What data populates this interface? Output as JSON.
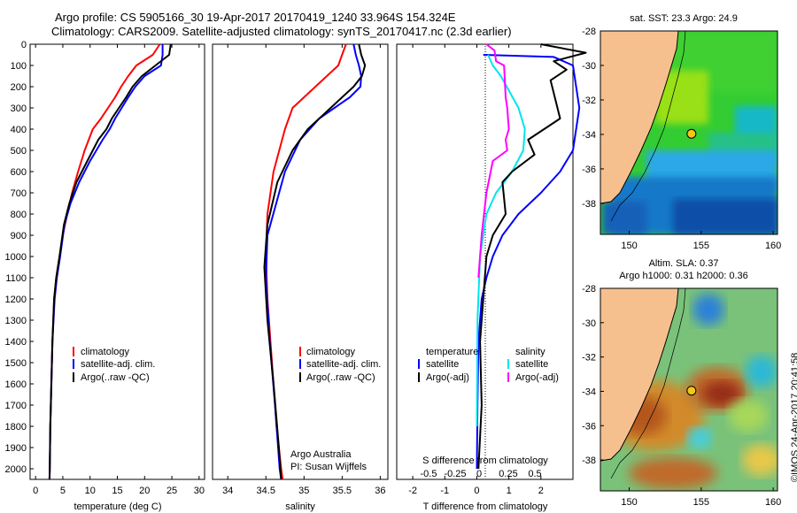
{
  "header": {
    "title_line1": "Argo profile: CS 5905166_30 19-Apr-2017 20170419_1240 33.964S 154.324E",
    "title_line2": "Climatology: CARS2009. Satellite-adjusted climatology: synTS_20170417.nc (2.3d earlier)"
  },
  "credit": "©IMOS 24-Apr-2017 20:41:58",
  "colors": {
    "climatology": "#ff0000",
    "satellite": "#0000ff",
    "argo": "#000000",
    "sat_salinity": "#00e5ee",
    "argo_salinity": "#ff00ff",
    "land": "#f6c08e"
  },
  "chart_data": [
    {
      "type": "line",
      "panel": "temperature",
      "xlabel": "temperature (deg C)",
      "ylabel": "",
      "xlim": [
        -1,
        31
      ],
      "ylim": [
        2050,
        0
      ],
      "xticks": [
        0,
        5,
        10,
        15,
        20,
        25,
        30
      ],
      "yticks": [
        0,
        100,
        200,
        300,
        400,
        500,
        600,
        700,
        800,
        900,
        1000,
        1100,
        1200,
        1300,
        1400,
        1500,
        1600,
        1700,
        1800,
        1900,
        2000
      ],
      "legend": [
        "climatology",
        "satellite-adj. clim.",
        "Argo(..raw -QC)"
      ],
      "series": [
        {
          "name": "climatology",
          "color": "#ff0000",
          "x": [
            22.8,
            21.5,
            18.5,
            17.0,
            15.7,
            14.6,
            13.3,
            12.0,
            10.5,
            9.0,
            7.8,
            6.7,
            5.8,
            5.0,
            4.4,
            3.8,
            3.4,
            3.1,
            2.9,
            2.7,
            2.6,
            2.55
          ],
          "y": [
            0,
            50,
            100,
            150,
            200,
            250,
            300,
            350,
            400,
            500,
            600,
            700,
            800,
            900,
            1000,
            1100,
            1200,
            1400,
            1600,
            1800,
            2000,
            2050
          ]
        },
        {
          "name": "satellite-adj. clim.",
          "color": "#0000ff",
          "x": [
            23.3,
            23.3,
            23.0,
            20.0,
            18.3,
            17.0,
            15.8,
            14.6,
            13.6,
            12.3,
            10.0,
            8.0,
            6.4,
            5.3,
            4.5,
            3.9,
            3.5,
            3.1,
            2.9,
            2.7,
            2.6,
            2.55
          ],
          "y": [
            0,
            50,
            100,
            150,
            200,
            250,
            300,
            350,
            400,
            450,
            550,
            650,
            750,
            850,
            1000,
            1100,
            1200,
            1400,
            1600,
            1800,
            2000,
            2050
          ]
        },
        {
          "name": "Argo(..raw -QC)",
          "color": "#000000",
          "x": [
            24.8,
            24.5,
            22.0,
            19.5,
            17.8,
            16.6,
            15.3,
            14.0,
            13.0,
            11.5,
            9.5,
            7.5,
            6.2,
            5.2,
            4.4,
            3.8,
            3.4,
            3.1,
            2.9,
            2.7,
            2.6,
            2.55
          ],
          "y": [
            0,
            50,
            100,
            150,
            200,
            250,
            300,
            350,
            400,
            450,
            550,
            650,
            750,
            850,
            1000,
            1100,
            1200,
            1400,
            1600,
            1800,
            2000,
            2050
          ]
        }
      ]
    },
    {
      "type": "line",
      "panel": "salinity",
      "xlabel": "salinity",
      "ylabel": "",
      "xlim": [
        33.8,
        36.1
      ],
      "ylim": [
        2050,
        0
      ],
      "xticks": [
        34,
        34.5,
        35,
        35.5,
        36
      ],
      "legend": [
        "climatology",
        "satellite-adj. clim.",
        "Argo(..raw -QC)"
      ],
      "annotation": [
        "Argo Australia",
        "PI: Susan Wijffels"
      ],
      "series": [
        {
          "name": "climatology",
          "color": "#ff0000",
          "x": [
            35.55,
            35.5,
            35.45,
            35.3,
            35.15,
            35.0,
            34.85,
            34.75,
            34.6,
            34.52,
            34.5,
            34.52,
            34.58,
            34.64,
            34.7,
            34.72
          ],
          "y": [
            0,
            50,
            100,
            150,
            200,
            250,
            300,
            400,
            600,
            800,
            1000,
            1200,
            1500,
            1800,
            2000,
            2050
          ]
        },
        {
          "name": "satellite-adj. clim.",
          "color": "#0000ff",
          "x": [
            35.65,
            35.68,
            35.72,
            35.75,
            35.74,
            35.6,
            35.4,
            35.2,
            34.95,
            34.75,
            34.52,
            34.5,
            34.55,
            34.62,
            34.68,
            34.7
          ],
          "y": [
            0,
            50,
            100,
            150,
            200,
            250,
            300,
            350,
            450,
            600,
            900,
            1100,
            1400,
            1700,
            2000,
            2050
          ]
        },
        {
          "name": "Argo(..raw -QC)",
          "color": "#000000",
          "x": [
            35.72,
            35.75,
            35.8,
            35.76,
            35.65,
            35.5,
            35.35,
            35.2,
            35.05,
            34.85,
            34.65,
            34.52,
            34.48,
            34.52,
            34.6,
            34.67,
            34.7
          ],
          "y": [
            0,
            50,
            100,
            150,
            200,
            250,
            300,
            350,
            400,
            500,
            650,
            850,
            1050,
            1300,
            1600,
            1900,
            2050
          ]
        }
      ]
    },
    {
      "type": "line",
      "panel": "differences",
      "xlabel": "T difference from climatology",
      "xlabel_top": "S difference from climatology",
      "xlim": [
        -2.5,
        3
      ],
      "ylim": [
        2050,
        0
      ],
      "xticks": [
        -2,
        -1,
        0,
        1,
        2
      ],
      "xticks_top": [
        "-0.5",
        "-0.25",
        "0",
        "0.25",
        "0.5"
      ],
      "legend_temperature_title": "temperature",
      "legend_salinity_title": "salinity",
      "legend": [
        "satellite",
        "Argo(-adj)",
        "satellite",
        "Argo(-adj)"
      ],
      "series": [
        {
          "name": "satellite",
          "variable": "temperature",
          "color": "#0000ff",
          "x": [
            0.2,
            2.4,
            3.0,
            3.2,
            3.0,
            2.6,
            2.0,
            1.3,
            0.8,
            0.5,
            0.3,
            0.15,
            0.05,
            0.02,
            0.0
          ],
          "y": [
            50,
            60,
            100,
            300,
            500,
            600,
            700,
            800,
            900,
            1000,
            1100,
            1200,
            1400,
            1700,
            2000
          ]
        },
        {
          "name": "satellite",
          "variable": "salinity",
          "color": "#00e5ee",
          "x": [
            0.35,
            0.5,
            0.75,
            1.3,
            1.5,
            1.45,
            1.1,
            0.6,
            0.3,
            0.1,
            0.02,
            0.0
          ],
          "y": [
            50,
            100,
            150,
            300,
            400,
            500,
            600,
            700,
            800,
            1000,
            1300,
            1800
          ]
        },
        {
          "name": "Argo(-adj)",
          "variable": "temperature",
          "color": "#000000",
          "x": [
            2.0,
            3.4,
            2.4,
            2.8,
            2.3,
            2.6,
            1.6,
            1.8,
            1.1,
            0.8,
            0.9,
            0.5,
            0.3,
            0.2,
            0.1,
            0.15,
            0.05
          ],
          "y": [
            0,
            40,
            80,
            120,
            170,
            350,
            450,
            520,
            600,
            650,
            800,
            900,
            1000,
            1200,
            1400,
            1700,
            2000
          ]
        },
        {
          "name": "Argo(-adj)",
          "variable": "salinity",
          "color": "#ff00ff",
          "x": [
            0.3,
            0.55,
            0.6,
            0.85,
            0.9,
            0.95,
            1.0,
            0.9,
            0.95,
            0.5,
            0.3,
            0.15,
            0.05
          ],
          "y": [
            0,
            30,
            80,
            100,
            250,
            300,
            400,
            450,
            500,
            550,
            700,
            900,
            1100
          ]
        }
      ]
    },
    {
      "type": "heatmap",
      "panel": "SST map",
      "title": "sat. SST: 23.3  Argo: 24.9",
      "xlim": [
        148,
        160.3
      ],
      "ylim": [
        -39.8,
        -28
      ],
      "xticks": [
        150,
        155,
        160
      ],
      "yticks": [
        -28,
        -30,
        -32,
        -34,
        -36,
        -38
      ],
      "marker": {
        "lon": 154.324,
        "lat": -33.964
      }
    },
    {
      "type": "heatmap",
      "panel": "SLA map",
      "title_line1": "Altim. SLA: 0.37",
      "title_line2": "Argo h1000: 0.31 h2000: 0.36",
      "xlim": [
        148,
        160.3
      ],
      "ylim": [
        -39.8,
        -28
      ],
      "xticks": [
        150,
        155,
        160
      ],
      "yticks": [
        -28,
        -30,
        -32,
        -34,
        -36,
        -38
      ],
      "marker": {
        "lon": 154.324,
        "lat": -33.964
      }
    }
  ]
}
